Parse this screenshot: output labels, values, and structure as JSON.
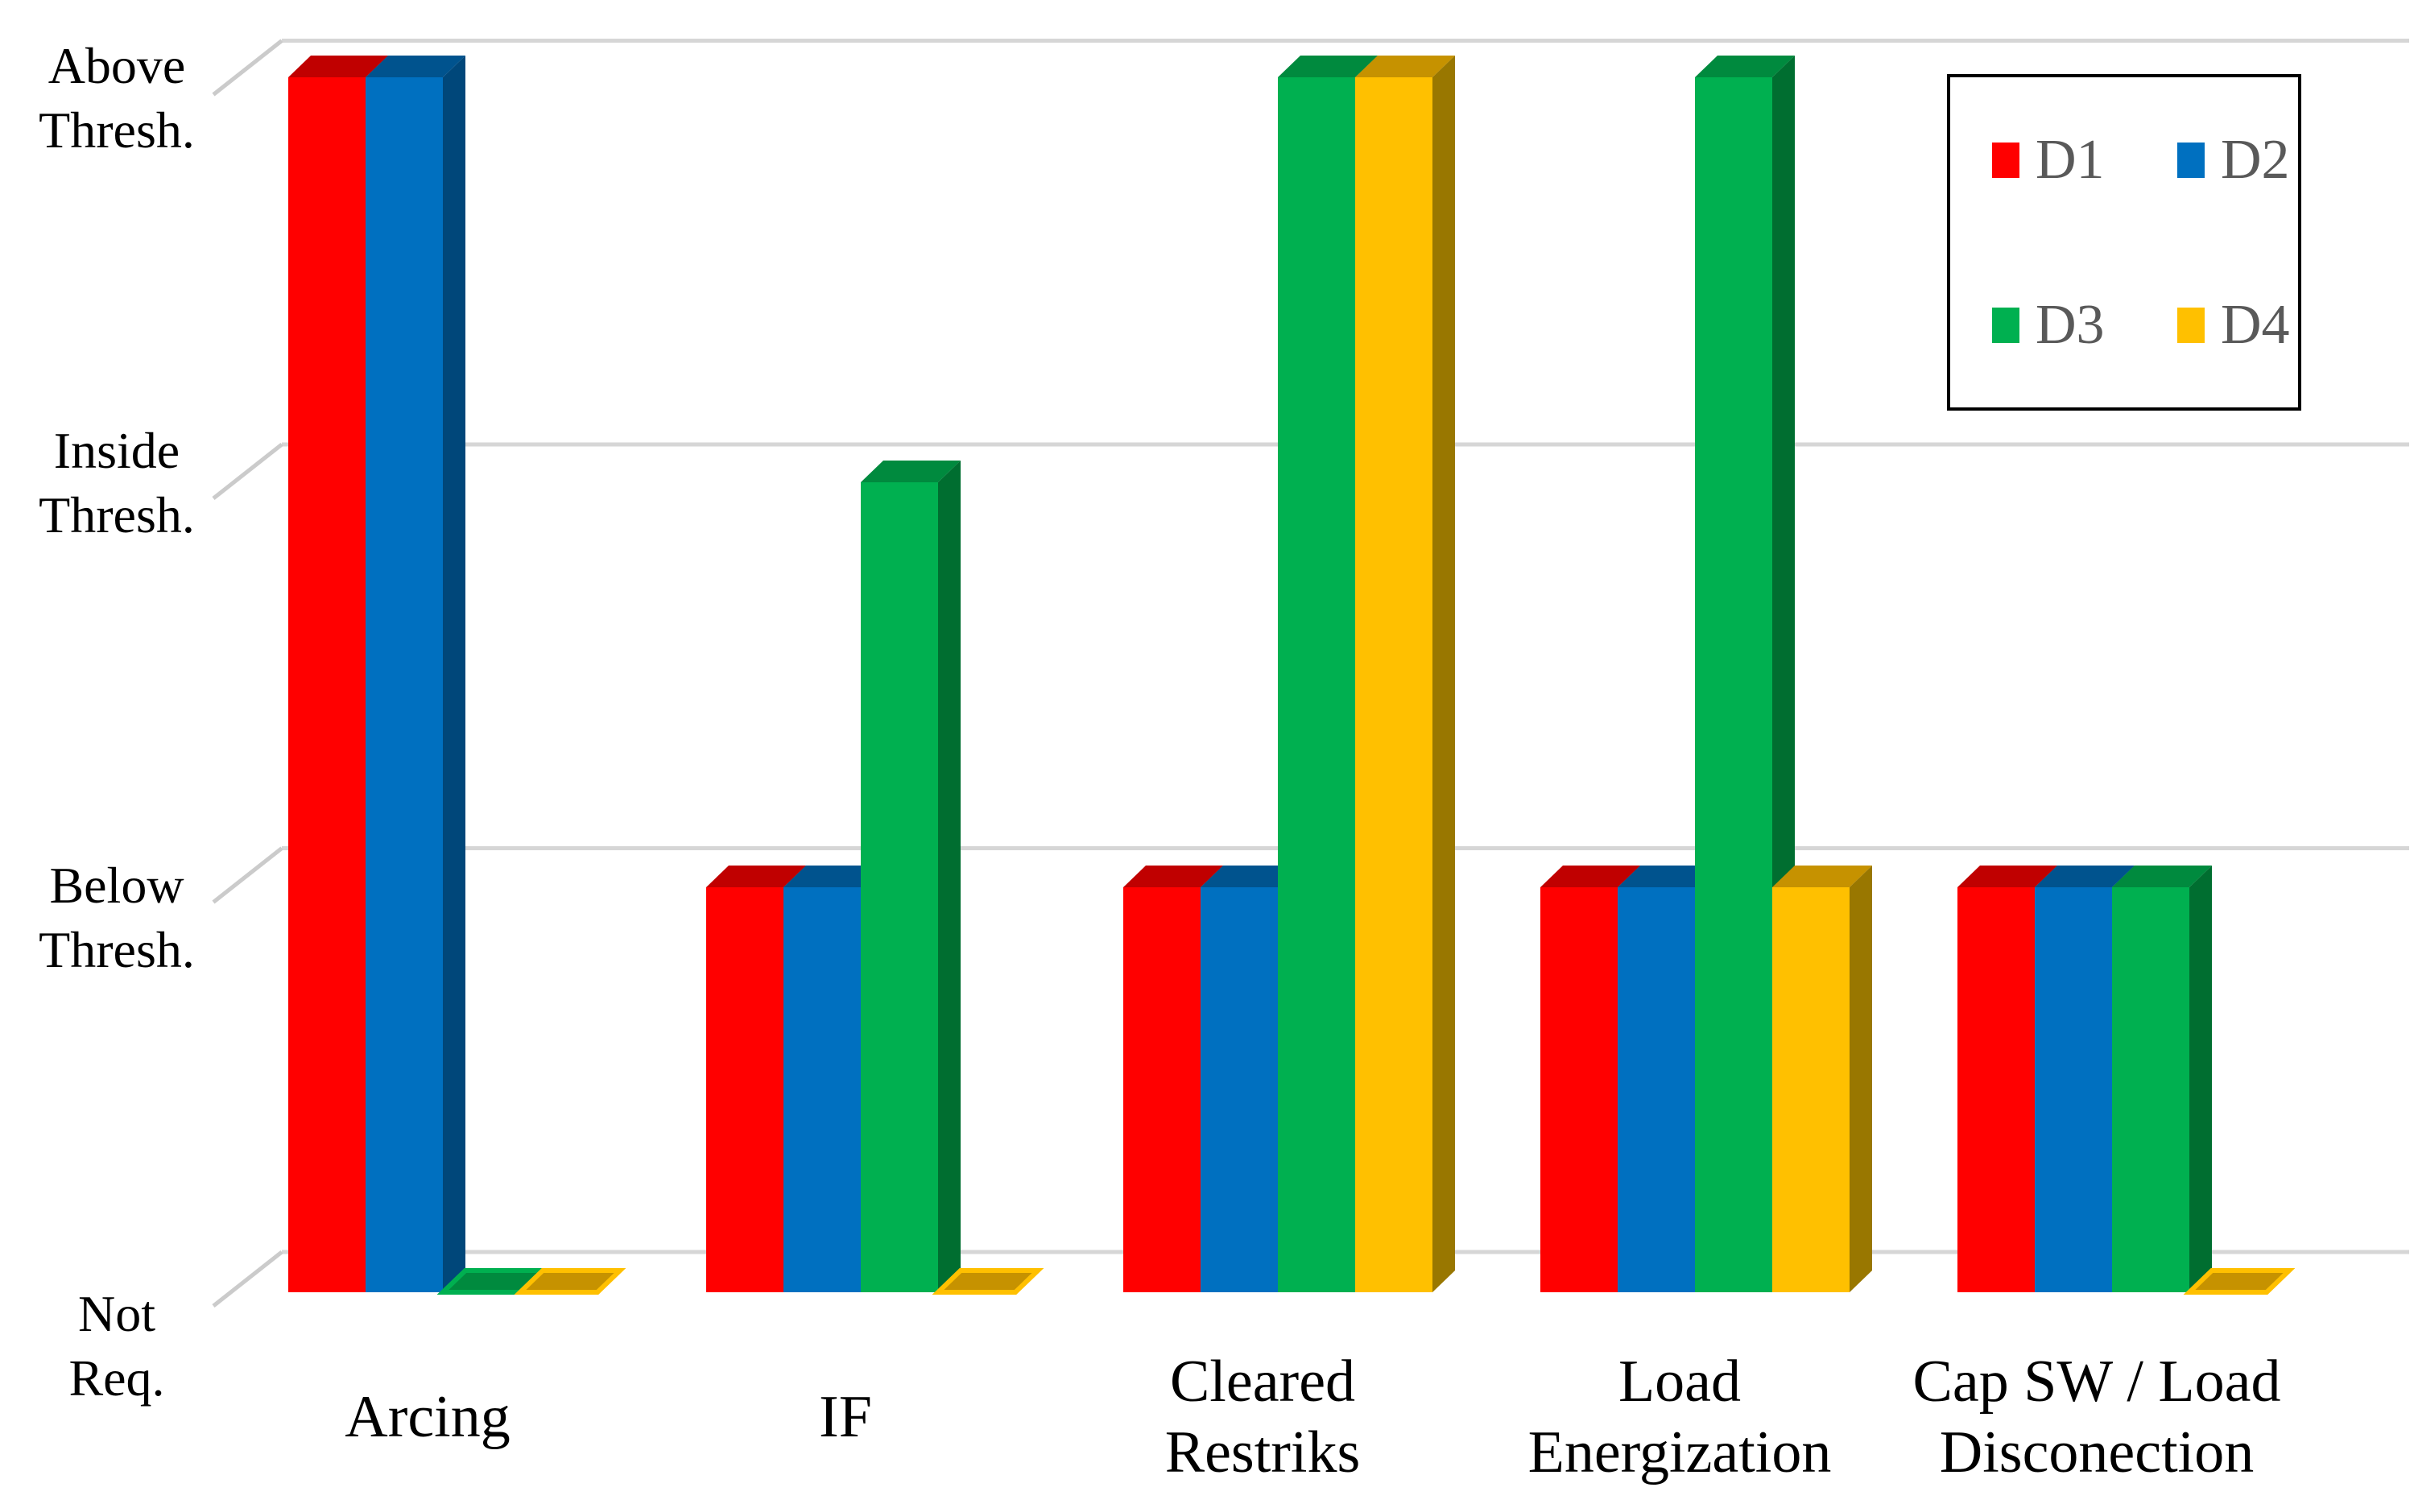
{
  "chart_data": {
    "type": "bar",
    "variant": "3d-clustered-column",
    "title": "",
    "xlabel": "",
    "ylabel": "",
    "grid": true,
    "categories": [
      "Arcing",
      "IF",
      "Cleared Restriks",
      "Load Energization",
      "Cap SW / Load Disconection"
    ],
    "category_label_lines": [
      [
        "Arcing"
      ],
      [
        "IF"
      ],
      [
        "Cleared",
        "Restriks"
      ],
      [
        "Load",
        "Energization"
      ],
      [
        "Cap SW / Load",
        "Disconection"
      ]
    ],
    "series": [
      {
        "name": "D1",
        "values": [
          3,
          1,
          1,
          1,
          1
        ],
        "color": "#FF0000",
        "top_color": "#C00000",
        "side_color": "#9E0000"
      },
      {
        "name": "D2",
        "values": [
          3,
          1,
          1,
          1,
          1
        ],
        "color": "#0070C0",
        "top_color": "#00538E",
        "side_color": "#00477A"
      },
      {
        "name": "D3",
        "values": [
          0,
          2,
          3,
          3,
          1
        ],
        "color": "#00B050",
        "top_color": "#008A3E",
        "side_color": "#006E30"
      },
      {
        "name": "D4",
        "values": [
          0,
          0,
          3,
          1,
          0
        ],
        "color": "#FFC000",
        "top_color": "#C69200",
        "side_color": "#997700"
      }
    ],
    "y_axis": {
      "tick_labels": [
        "Not Req.",
        "Below Thresh.",
        "Inside Thresh.",
        "Above Thresh."
      ],
      "tick_label_lines": [
        [
          "Not",
          "Req."
        ],
        [
          "Below",
          "Thresh."
        ],
        [
          "Inside",
          "Thresh."
        ],
        [
          "Above",
          "Thresh."
        ]
      ],
      "levels": [
        0,
        1,
        2,
        3
      ],
      "ylim": [
        0,
        3
      ]
    },
    "legend": {
      "position": "top-right",
      "entries": [
        "D1",
        "D2",
        "D3",
        "D4"
      ]
    }
  },
  "styles": {
    "background": "#FFFFFF",
    "grid_color": "#D6D6D6",
    "tick_color": "#CBCBCB",
    "axis_text_color": "#000000",
    "legend_text_color": "#595959",
    "legend_border_color": "#000000"
  }
}
